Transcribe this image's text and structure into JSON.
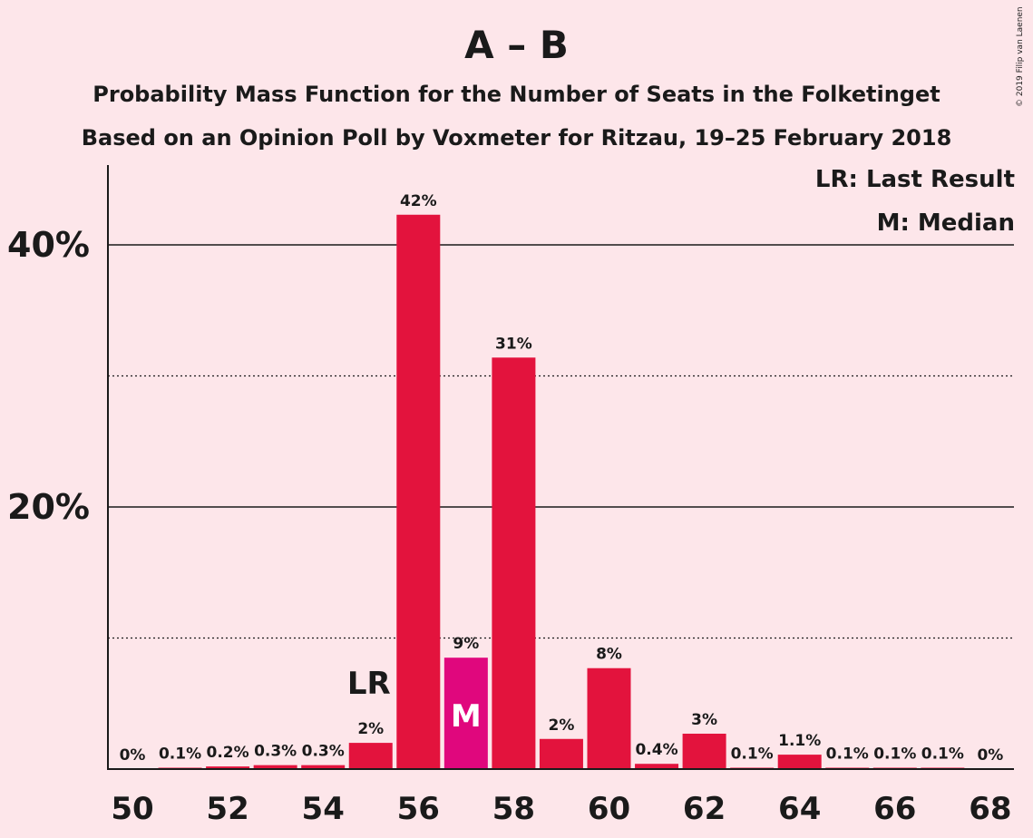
{
  "header": {
    "title": "A – B",
    "subtitle_1": "Probability Mass Function for the Number of Seats in the Folketinget",
    "subtitle_2": "Based on an Opinion Poll by Voxmeter for Ritzau, 19–25 February 2018",
    "copyright": "© 2019 Filip van Laenen"
  },
  "legend": {
    "last_result": "LR: Last Result",
    "median": "M: Median"
  },
  "colors": {
    "background": "#fde6ea",
    "bar": "#e3133d",
    "median_bar": "#e0077d",
    "text": "#1a1a1a"
  },
  "chart_data": {
    "type": "bar",
    "title": "A – B",
    "xlabel": "",
    "ylabel": "",
    "ylim": [
      0,
      46
    ],
    "yticks_major": [
      20,
      40
    ],
    "ytick_labels": [
      "20%",
      "40%"
    ],
    "yticks_minor": [
      10,
      30
    ],
    "x_tick_labels": [
      "50",
      "52",
      "54",
      "56",
      "58",
      "60",
      "62",
      "64",
      "66",
      "68"
    ],
    "x_tick_values": [
      50,
      52,
      54,
      56,
      58,
      60,
      62,
      64,
      66,
      68
    ],
    "categories": [
      50,
      51,
      52,
      53,
      54,
      55,
      56,
      57,
      58,
      59,
      60,
      61,
      62,
      63,
      64,
      65,
      66,
      67,
      68
    ],
    "values": [
      0,
      0.1,
      0.2,
      0.3,
      0.3,
      2.0,
      42.3,
      8.5,
      31.4,
      2.3,
      7.7,
      0.4,
      2.7,
      0.1,
      1.1,
      0.1,
      0.1,
      0.1,
      0
    ],
    "labels": [
      "0%",
      "0.1%",
      "0.2%",
      "0.3%",
      "0.3%",
      "2%",
      "42%",
      "9%",
      "31%",
      "2%",
      "8%",
      "0.4%",
      "3%",
      "0.1%",
      "1.1%",
      "0.1%",
      "0.1%",
      "0.1%",
      "0%"
    ],
    "last_result": 55,
    "last_result_label": "LR",
    "median": 57,
    "median_label": "M",
    "grid": "major solid, minor dotted"
  }
}
